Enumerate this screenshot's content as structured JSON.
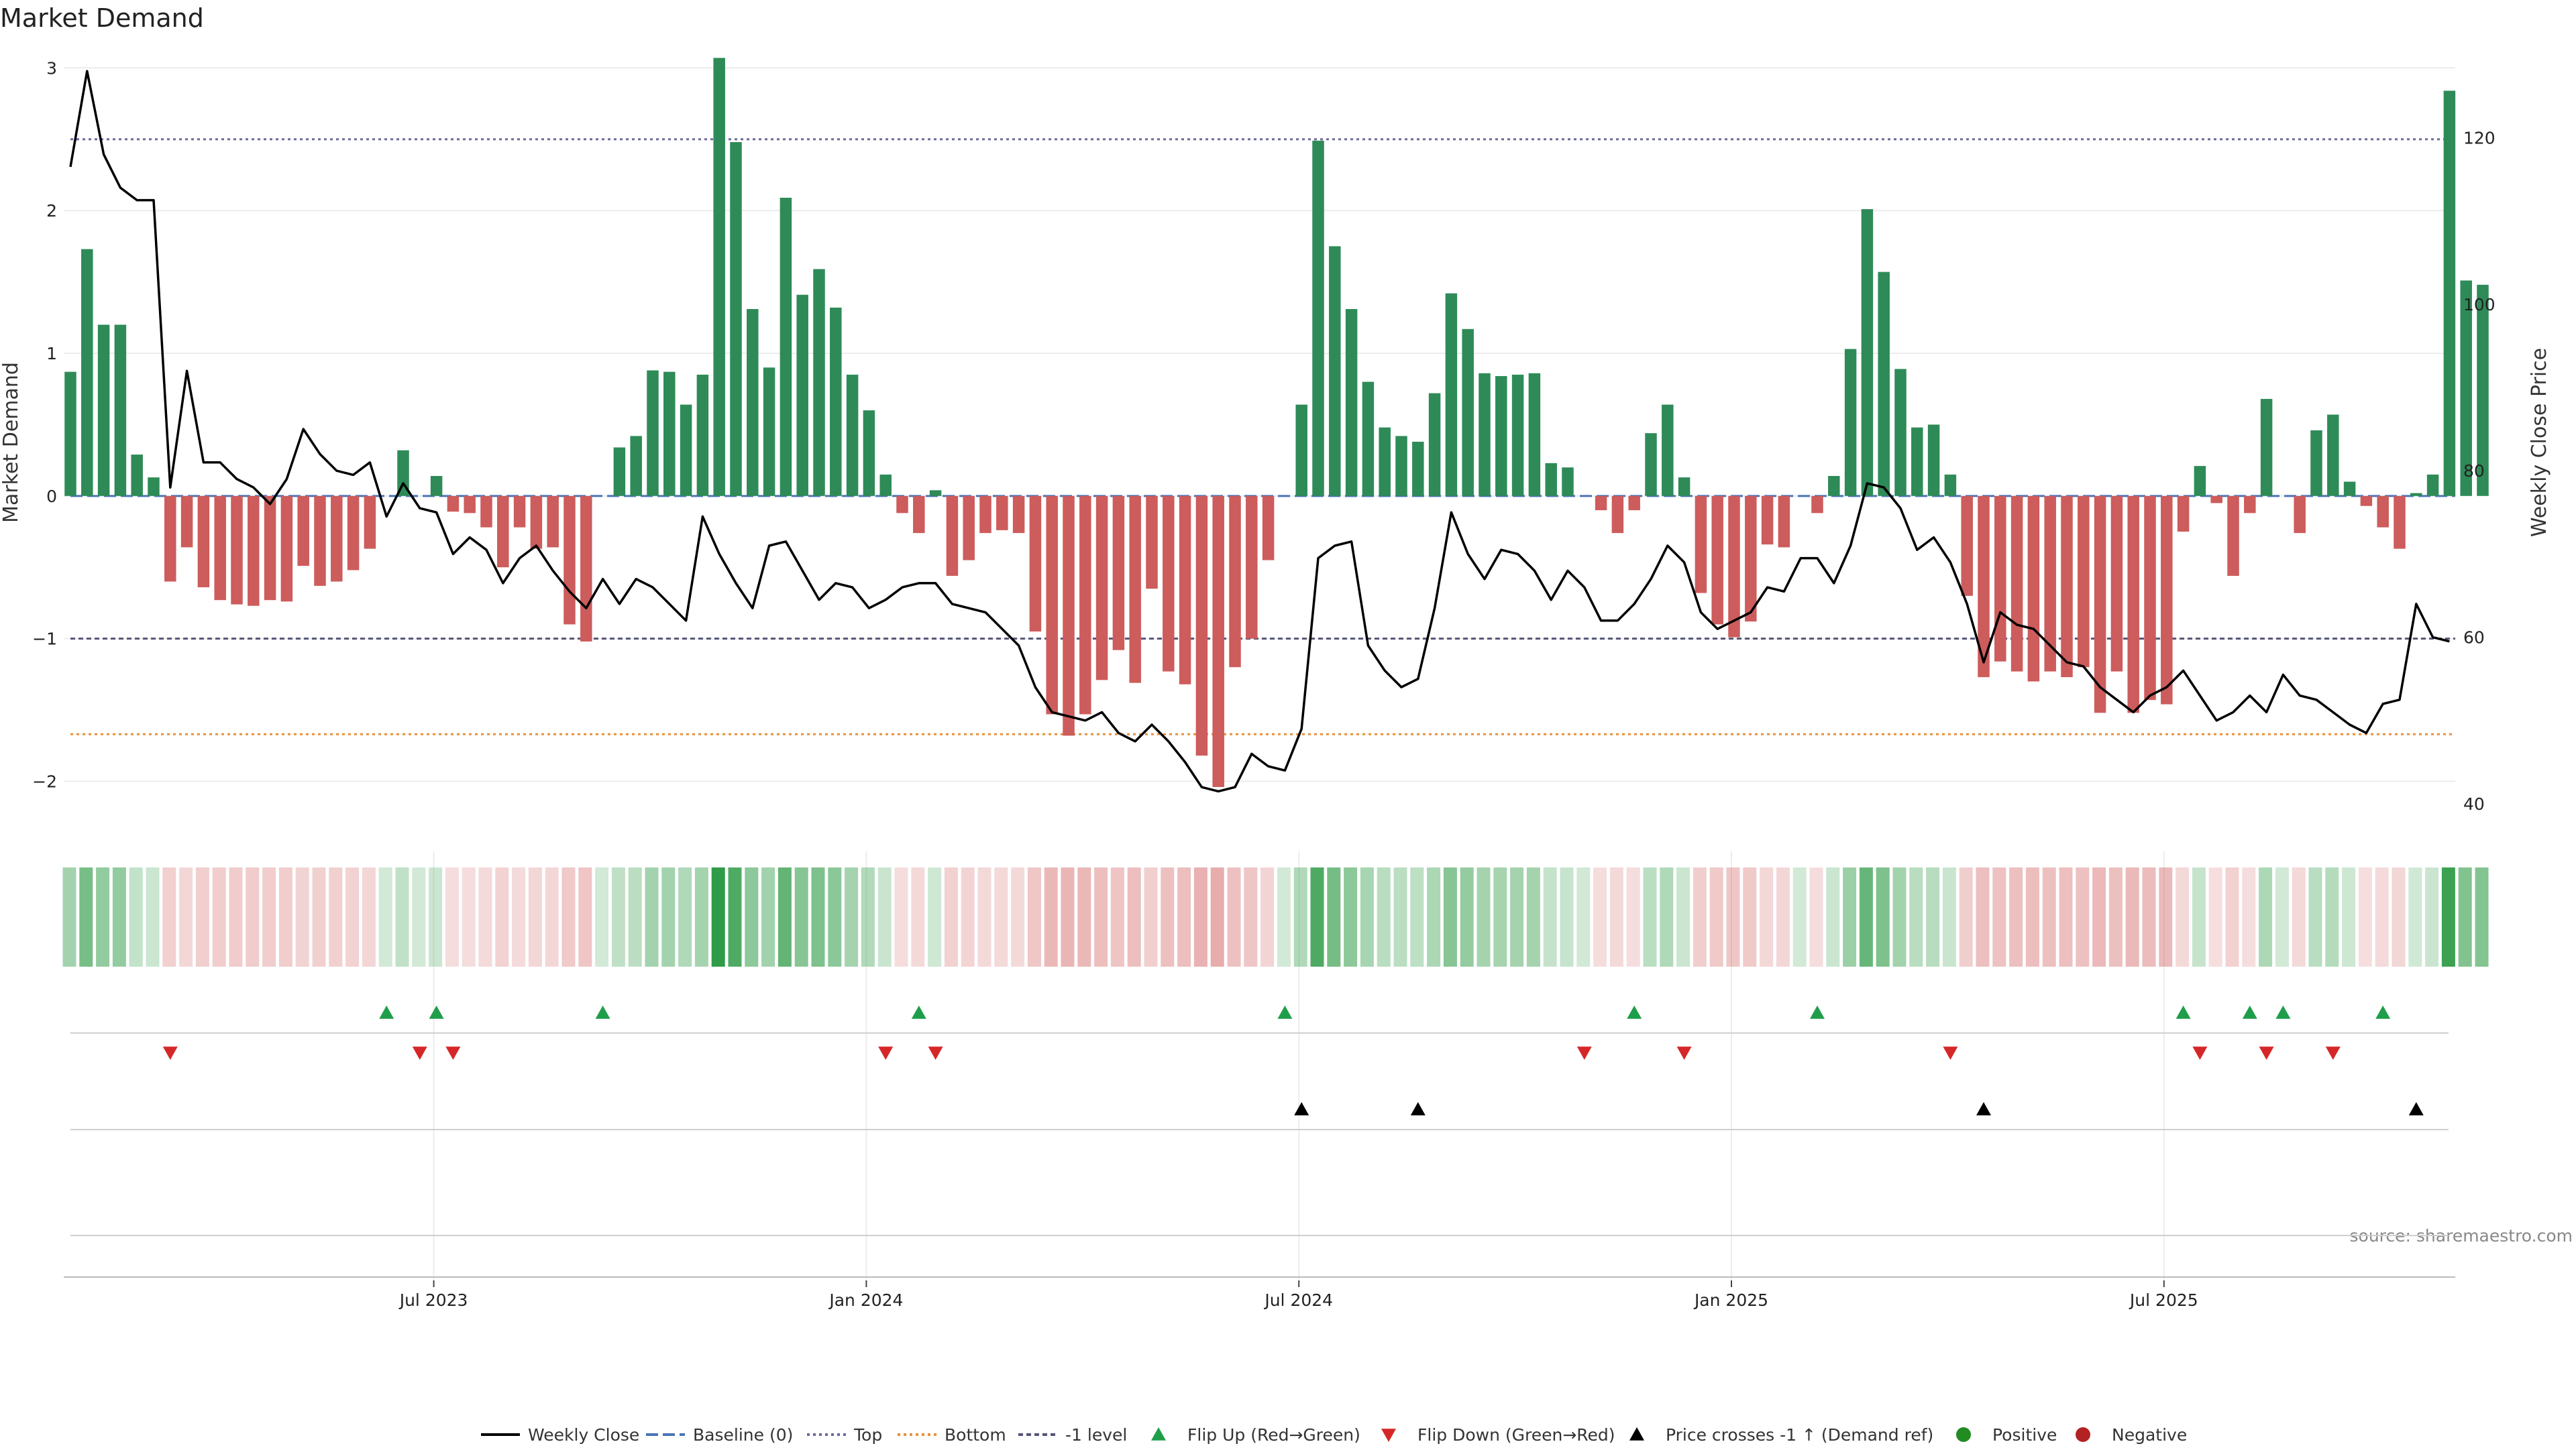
{
  "chart_data": {
    "type": "bar",
    "title": "Market Demand",
    "ylabel_left": "Market Demand",
    "ylabel_right": "Weekly Close Price",
    "source": "source: sharemaestro.com",
    "left_axis": {
      "ylim": [
        -2.35,
        3.1
      ],
      "ticks": [
        3,
        2,
        1,
        0,
        -1,
        -2
      ],
      "tick_labels": [
        "3",
        "2",
        "1",
        "0",
        "−1",
        "−2"
      ]
    },
    "right_axis": {
      "ylim": [
        36.7,
        130.1
      ],
      "ticks": [
        120,
        100,
        80,
        60,
        40
      ],
      "tick_labels": [
        "120",
        "100",
        "80",
        "60",
        "40"
      ]
    },
    "x_ticks": [
      {
        "week": 22,
        "label": "Jul 2023"
      },
      {
        "week": 48,
        "label": "Jan 2024"
      },
      {
        "week": 74,
        "label": "Jul 2024"
      },
      {
        "week": 100,
        "label": "Jan 2025"
      },
      {
        "week": 126,
        "label": "Jul 2025"
      }
    ],
    "reference_lines": {
      "baseline": 0,
      "top": 2.5,
      "bottom": -1.67,
      "minus_one": -1
    },
    "demand": [
      0.87,
      1.73,
      1.2,
      1.2,
      0.29,
      0.13,
      -0.6,
      -0.36,
      -0.64,
      -0.73,
      -0.76,
      -0.77,
      -0.73,
      -0.74,
      -0.49,
      -0.63,
      -0.6,
      -0.52,
      -0.37,
      0.0,
      0.32,
      0.0,
      0.14,
      -0.11,
      -0.12,
      -0.22,
      -0.5,
      -0.22,
      -0.37,
      -0.36,
      -0.9,
      -1.02,
      0.0,
      0.34,
      0.42,
      0.88,
      0.87,
      0.64,
      0.85,
      3.07,
      2.48,
      1.31,
      0.9,
      2.09,
      1.41,
      1.59,
      1.32,
      0.85,
      0.6,
      0.15,
      -0.12,
      -0.26,
      0.04,
      -0.56,
      -0.45,
      -0.26,
      -0.24,
      -0.26,
      -0.95,
      -1.53,
      -1.68,
      -1.53,
      -1.29,
      -1.08,
      -1.31,
      -0.65,
      -1.23,
      -1.32,
      -1.82,
      -2.04,
      -1.2,
      -1.0,
      -0.45,
      0.0,
      0.64,
      2.49,
      1.75,
      1.31,
      0.8,
      0.48,
      0.42,
      0.38,
      0.72,
      1.42,
      1.17,
      0.86,
      0.84,
      0.85,
      0.86,
      0.23,
      0.2,
      0.0,
      -0.1,
      -0.26,
      -0.1,
      0.44,
      0.64,
      0.13,
      -0.68,
      -0.9,
      -0.99,
      -0.88,
      -0.34,
      -0.36,
      0.0,
      -0.12,
      0.14,
      1.03,
      2.01,
      1.57,
      0.89,
      0.48,
      0.5,
      0.15,
      -0.7,
      -1.27,
      -1.16,
      -1.23,
      -1.3,
      -1.23,
      -1.27,
      -1.2,
      -1.52,
      -1.23,
      -1.52,
      -1.43,
      -1.46,
      -0.25,
      0.21,
      -0.05,
      -0.56,
      -0.12,
      0.68,
      0.0,
      -0.26,
      0.46,
      0.57,
      0.1,
      -0.07,
      -0.22,
      -0.37,
      0.02,
      0.15,
      2.84,
      1.51,
      1.48
    ],
    "weekly_close": [
      116.5,
      128.0,
      118.0,
      114.0,
      112.5,
      112.5,
      78.0,
      92.0,
      81.0,
      81.0,
      79.0,
      78.0,
      76.0,
      79.0,
      85.0,
      82.0,
      80.0,
      79.5,
      81.0,
      74.5,
      78.5,
      75.5,
      75.0,
      70.0,
      72.0,
      70.5,
      66.5,
      69.5,
      71.0,
      68.0,
      65.5,
      63.5,
      67.0,
      64.0,
      67.0,
      66.0,
      64.0,
      62.0,
      74.5,
      70.0,
      66.5,
      63.5,
      71.0,
      71.5,
      68.0,
      64.5,
      66.5,
      66.0,
      63.5,
      64.5,
      66.0,
      66.5,
      66.5,
      64.0,
      63.5,
      63.0,
      61.0,
      59.0,
      54.0,
      51.0,
      50.5,
      50.0,
      51.0,
      48.5,
      47.5,
      49.5,
      47.5,
      45.0,
      42.0,
      41.5,
      42.0,
      46.0,
      44.5,
      44.0,
      49.0,
      69.5,
      71.0,
      71.5,
      59.0,
      56.0,
      54.0,
      55.0,
      63.5,
      75.0,
      70.0,
      67.0,
      70.5,
      70.0,
      68.0,
      64.5,
      68.0,
      66.0,
      62.0,
      62.0,
      64.0,
      67.0,
      71.0,
      69.0,
      63.0,
      61.0,
      62.0,
      63.0,
      66.0,
      65.5,
      69.5,
      69.5,
      66.5,
      71.0,
      78.5,
      78.0,
      75.5,
      70.5,
      72.0,
      69.0,
      64.0,
      57.0,
      63.0,
      61.5,
      61.0,
      59.0,
      57.0,
      56.5,
      54.0,
      52.5,
      51.0,
      53.0,
      54.0,
      56.0,
      53.0,
      50.0,
      51.0,
      53.0,
      51.0,
      55.5,
      53.0,
      52.5,
      51.0,
      49.5,
      48.5,
      52.0,
      52.5,
      64.0,
      60.0,
      59.5
    ],
    "flip_up_weeks": [
      19,
      22,
      32,
      51,
      73,
      94,
      105,
      127,
      131,
      133,
      139
    ],
    "flip_down_weeks": [
      6,
      21,
      23,
      49,
      52,
      91,
      97,
      113,
      128,
      132,
      136
    ],
    "price_cross_weeks": [
      74,
      81,
      115,
      141
    ],
    "legend": [
      {
        "key": "weekly-close",
        "label": "Weekly Close"
      },
      {
        "key": "baseline",
        "label": "Baseline (0)"
      },
      {
        "key": "top",
        "label": "Top"
      },
      {
        "key": "bottom",
        "label": "Bottom"
      },
      {
        "key": "minus-one",
        "label": "-1 level"
      },
      {
        "key": "flip-up",
        "label": "Flip Up (Red→Green)"
      },
      {
        "key": "flip-down",
        "label": "Flip Down (Green→Red)"
      },
      {
        "key": "price-cross",
        "label": "Price crosses -1 ↑ (Demand ref)"
      },
      {
        "key": "positive",
        "label": "Positive"
      },
      {
        "key": "negative",
        "label": "Negative"
      }
    ],
    "colors": {
      "positive_bar": "#2e8b57",
      "negative_bar": "#cd5c5c",
      "line": "#000000",
      "baseline": "#4a74b8",
      "top": "#6b6b9e",
      "bottom": "#e8903a",
      "minus_one": "#555577",
      "flip_up": "#1e9e4a",
      "flip_down": "#d62728",
      "price_cross": "#000000",
      "positive_dot": "#228b22",
      "negative_dot": "#b22222"
    }
  }
}
